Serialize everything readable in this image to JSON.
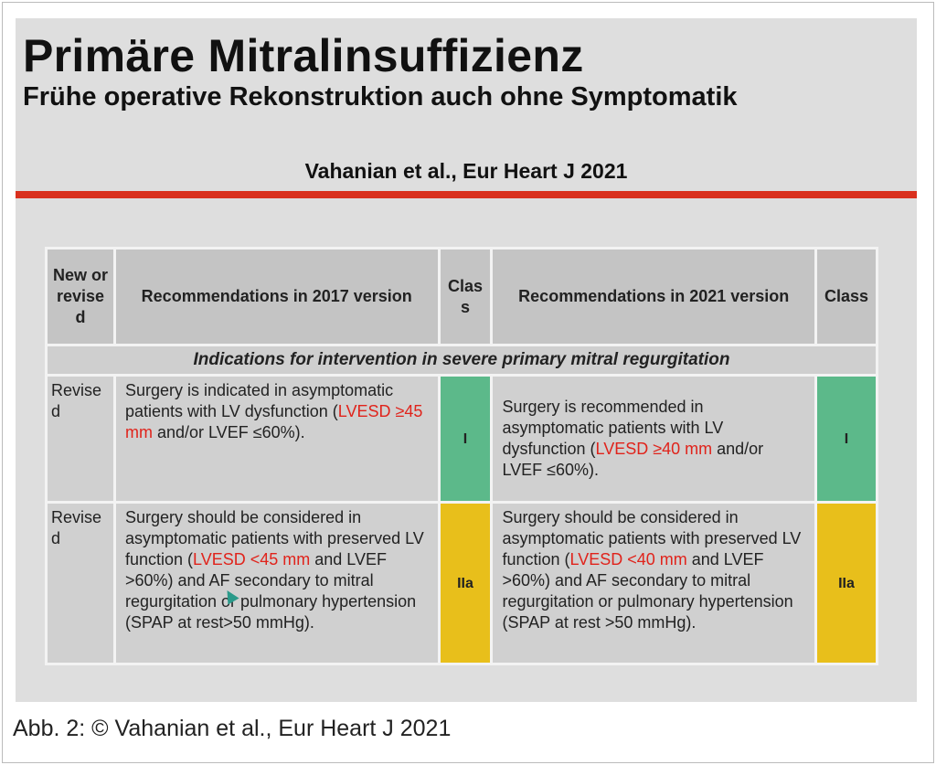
{
  "slide": {
    "title": "Primäre Mitralinsuffizienz",
    "subtitle": "Frühe operative Rekonstruktion auch ohne Symptomatik",
    "citation": "Vahanian et al., Eur Heart J 2021"
  },
  "table": {
    "headers": [
      "New or revise d",
      "Recommendations in 2017 version",
      "Clas s",
      "Recommendations in 2021 version",
      "Class"
    ],
    "section": "Indications for intervention in severe primary mitral regurgitation",
    "rows": [
      {
        "status": "Revise d",
        "old": {
          "a": "Surgery is indicated in asymptomatic patients with LV dysfunction (",
          "red": "LVESD ≥45 mm",
          "b": " and/or LVEF ≤60%)."
        },
        "old_class": "I",
        "new": {
          "a": "Surgery is recommended in asymptomatic patients with LV dysfunction (",
          "red": "LVESD ≥40 mm",
          "b": " and/or LVEF ≤60%)."
        },
        "new_class": "I"
      },
      {
        "status": "Revise d",
        "old": {
          "a": "Surgery should be considered in asymptomatic patients with preserved LV function (",
          "red": "LVESD <45 mm",
          "b": " and LVEF >60%) and AF secondary to mitral regurgitation or pulmonary hypertension (SPAP at rest>50 mmHg)."
        },
        "old_class": "IIa",
        "new": {
          "a": "Surgery should be considered in asymptomatic patients with preserved LV function (",
          "red": "LVESD <40 mm",
          "b": " and LVEF >60%) and AF secondary to mitral regurgitation or pulmonary hypertension (SPAP at rest >50 mmHg)."
        },
        "new_class": "IIa"
      }
    ]
  },
  "caption": "Abb. 2: © Vahanian et al., Eur Heart J 2021",
  "colors": {
    "class_I": "#5cb98a",
    "class_IIa": "#e8bf1b",
    "accent_red": "#d9301e"
  }
}
